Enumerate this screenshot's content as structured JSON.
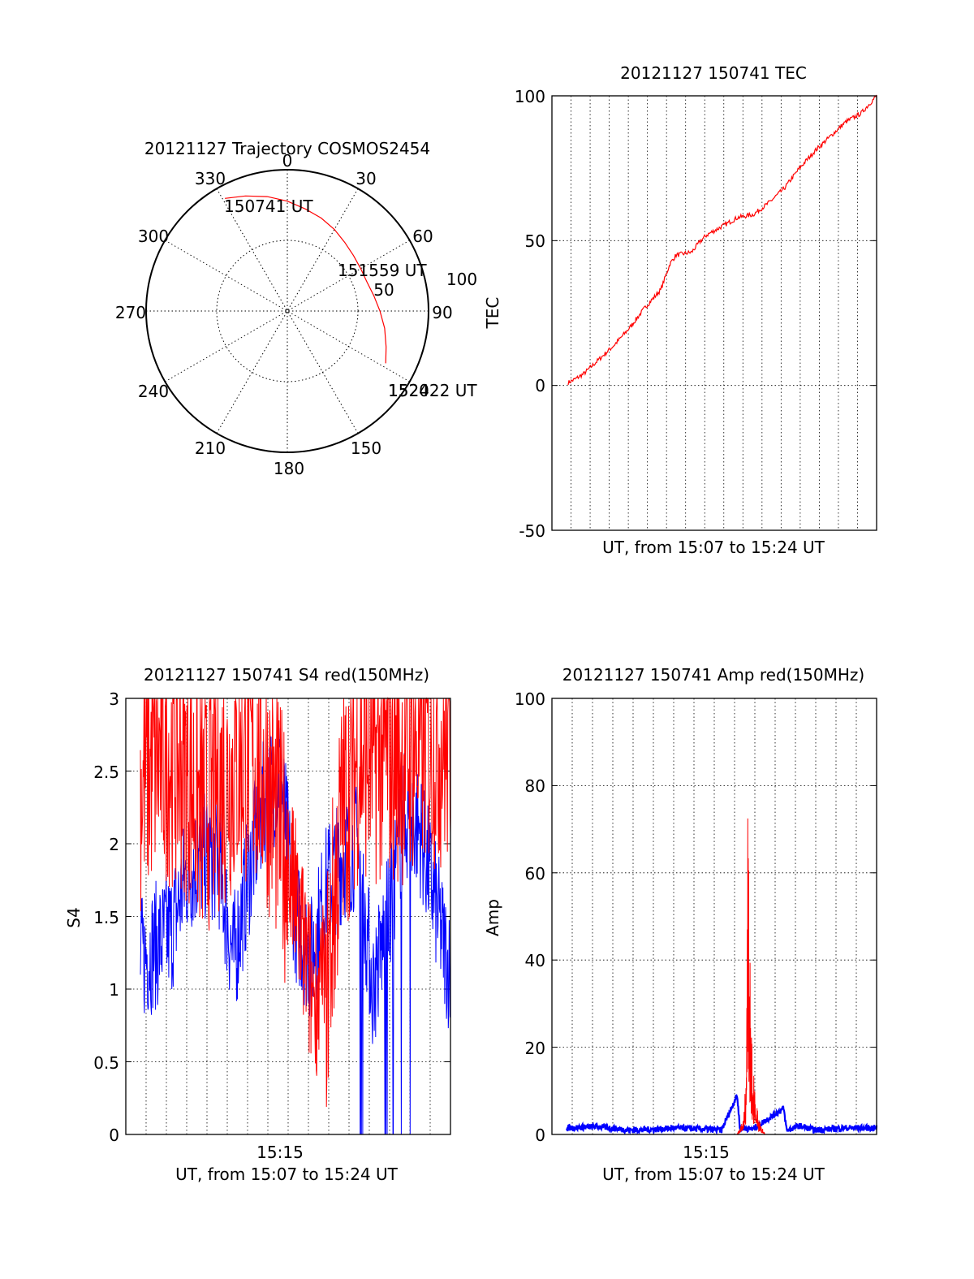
{
  "chart_data": [
    {
      "type": "polar",
      "title": "20121127 Trajectory COSMOS2454",
      "azimuth_labels": [
        "0",
        "30",
        "60",
        "90",
        "150",
        "180",
        "210",
        "240",
        "270",
        "300",
        "330"
      ],
      "radial_labels": [
        "50",
        "100"
      ],
      "start_time_label": "150741 UT",
      "mid_time_label": "151559 UT",
      "end_time_label": "152422 UT",
      "end_overlap_label": "1520",
      "trajectory": {
        "color": "#ff0000",
        "points": [
          {
            "az": 331,
            "el": 8
          },
          {
            "az": 340,
            "el": 12
          },
          {
            "az": 350,
            "el": 16
          },
          {
            "az": 0,
            "el": 20
          },
          {
            "az": 10,
            "el": 24
          },
          {
            "az": 20,
            "el": 27
          },
          {
            "az": 30,
            "el": 30
          },
          {
            "az": 40,
            "el": 33
          },
          {
            "az": 50,
            "el": 35
          },
          {
            "az": 60,
            "el": 36
          },
          {
            "az": 70,
            "el": 36
          },
          {
            "az": 80,
            "el": 34
          },
          {
            "az": 90,
            "el": 31
          },
          {
            "az": 100,
            "el": 27
          },
          {
            "az": 110,
            "el": 23
          },
          {
            "az": 118,
            "el": 19
          }
        ]
      }
    },
    {
      "type": "line",
      "title": "20121127 150741 TEC",
      "ylabel": "TEC",
      "xlabel": "UT, from 15:07 to 15:24 UT",
      "ylim": [
        -50,
        100
      ],
      "yticks": [
        "-50",
        "0",
        "50",
        "100"
      ],
      "grid": true,
      "series": [
        {
          "color": "#ff0000",
          "x": [
            0,
            0.02,
            0.05,
            0.1,
            0.15,
            0.2,
            0.25,
            0.3,
            0.33,
            0.35,
            0.4,
            0.43,
            0.45,
            0.5,
            0.55,
            0.6,
            0.65,
            0.7,
            0.75,
            0.8,
            0.85,
            0.9,
            0.95,
            1.0
          ],
          "values": [
            1,
            2,
            4,
            9,
            14,
            20,
            27,
            33,
            42,
            45,
            46,
            50,
            52,
            55,
            58,
            59,
            63,
            68,
            75,
            81,
            86,
            91,
            94,
            100
          ]
        }
      ]
    },
    {
      "type": "line",
      "title": "20121127 150741 S4 red(150MHz)",
      "ylabel": "S4",
      "xlabel": "UT, from 15:07 to 15:24 UT",
      "xtick_label": "15:15",
      "ylim": [
        0,
        3
      ],
      "yticks": [
        "0",
        "0.5",
        "1",
        "1.5",
        "2",
        "2.5",
        "3"
      ],
      "grid": true,
      "series": [
        {
          "color": "#0000ff",
          "x": [
            0,
            0.05,
            0.1,
            0.15,
            0.2,
            0.25,
            0.3,
            0.35,
            0.4,
            0.45,
            0.5,
            0.55,
            0.6,
            0.65,
            0.7,
            0.75,
            0.8,
            0.85,
            0.9,
            0.95,
            1.0
          ],
          "values": [
            1.2,
            1.3,
            1.4,
            1.8,
            1.9,
            1.9,
            1.2,
            1.8,
            2.3,
            2.5,
            1.5,
            1.2,
            1.7,
            1.9,
            2.0,
            1.0,
            1.5,
            2.2,
            2.1,
            1.6,
            1.1
          ]
        },
        {
          "color": "#ff0000",
          "x": [
            0,
            0.05,
            0.1,
            0.15,
            0.2,
            0.25,
            0.3,
            0.35,
            0.4,
            0.45,
            0.5,
            0.55,
            0.6,
            0.65,
            0.7,
            0.75,
            0.8,
            0.85,
            0.9,
            0.95,
            1.0
          ],
          "values": [
            2.4,
            2.6,
            2.6,
            2.5,
            2.2,
            2.4,
            2.5,
            2.6,
            2.5,
            2.1,
            1.6,
            1.0,
            1.0,
            2.2,
            2.6,
            2.6,
            2.6,
            2.6,
            2.7,
            2.7,
            2.7
          ]
        }
      ]
    },
    {
      "type": "line",
      "title": "20121127 150741 Amp red(150MHz)",
      "ylabel": "Amp",
      "xlabel": "UT, from 15:07 to 15:24 UT",
      "xtick_label": "15:15",
      "ylim": [
        0,
        100
      ],
      "yticks": [
        "0",
        "20",
        "40",
        "60",
        "80",
        "100"
      ],
      "grid": true,
      "series": [
        {
          "color": "#0000ff",
          "x": [
            0,
            0.1,
            0.2,
            0.3,
            0.35,
            0.5,
            0.55,
            0.56,
            0.57,
            0.6,
            0.7,
            0.71,
            0.72,
            0.75,
            0.8,
            0.9,
            1.0
          ],
          "values": [
            1.5,
            1.8,
            1.0,
            1.2,
            1.5,
            1.0,
            9,
            1.0,
            1.5,
            1.2,
            6,
            1.0,
            1.2,
            2,
            1.0,
            1.5,
            1.5
          ]
        },
        {
          "color": "#ff0000",
          "x": [
            0.55,
            0.57,
            0.58,
            0.585,
            0.59,
            0.6,
            0.61,
            0.62,
            0.64
          ],
          "values": [
            0,
            4,
            20,
            80,
            45,
            20,
            8,
            4,
            0
          ]
        }
      ]
    }
  ]
}
